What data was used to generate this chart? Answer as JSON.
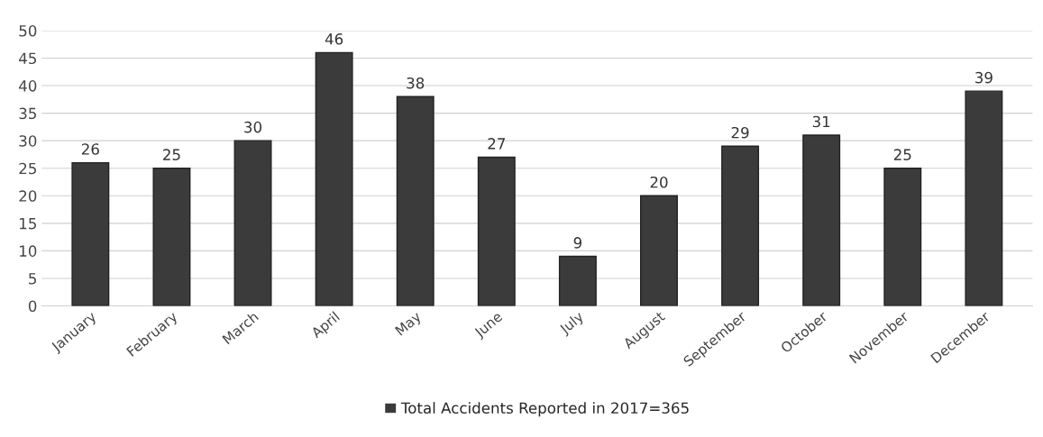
{
  "chart_data": {
    "type": "bar",
    "categories": [
      "January",
      "February",
      "March",
      "April",
      "May",
      "June",
      "July",
      "August",
      "September",
      "October",
      "November",
      "December"
    ],
    "series": [
      {
        "name": "Total Accidents Reported in 2017=365",
        "color": "#3b3b3b",
        "values": [
          26,
          25,
          30,
          46,
          38,
          27,
          9,
          20,
          29,
          31,
          25,
          39
        ]
      }
    ],
    "ylim": [
      0,
      50
    ],
    "yticks": [
      0,
      5,
      10,
      15,
      20,
      25,
      30,
      35,
      40,
      45,
      50
    ],
    "grid": "y",
    "legend": "bottom",
    "data_labels": true
  }
}
